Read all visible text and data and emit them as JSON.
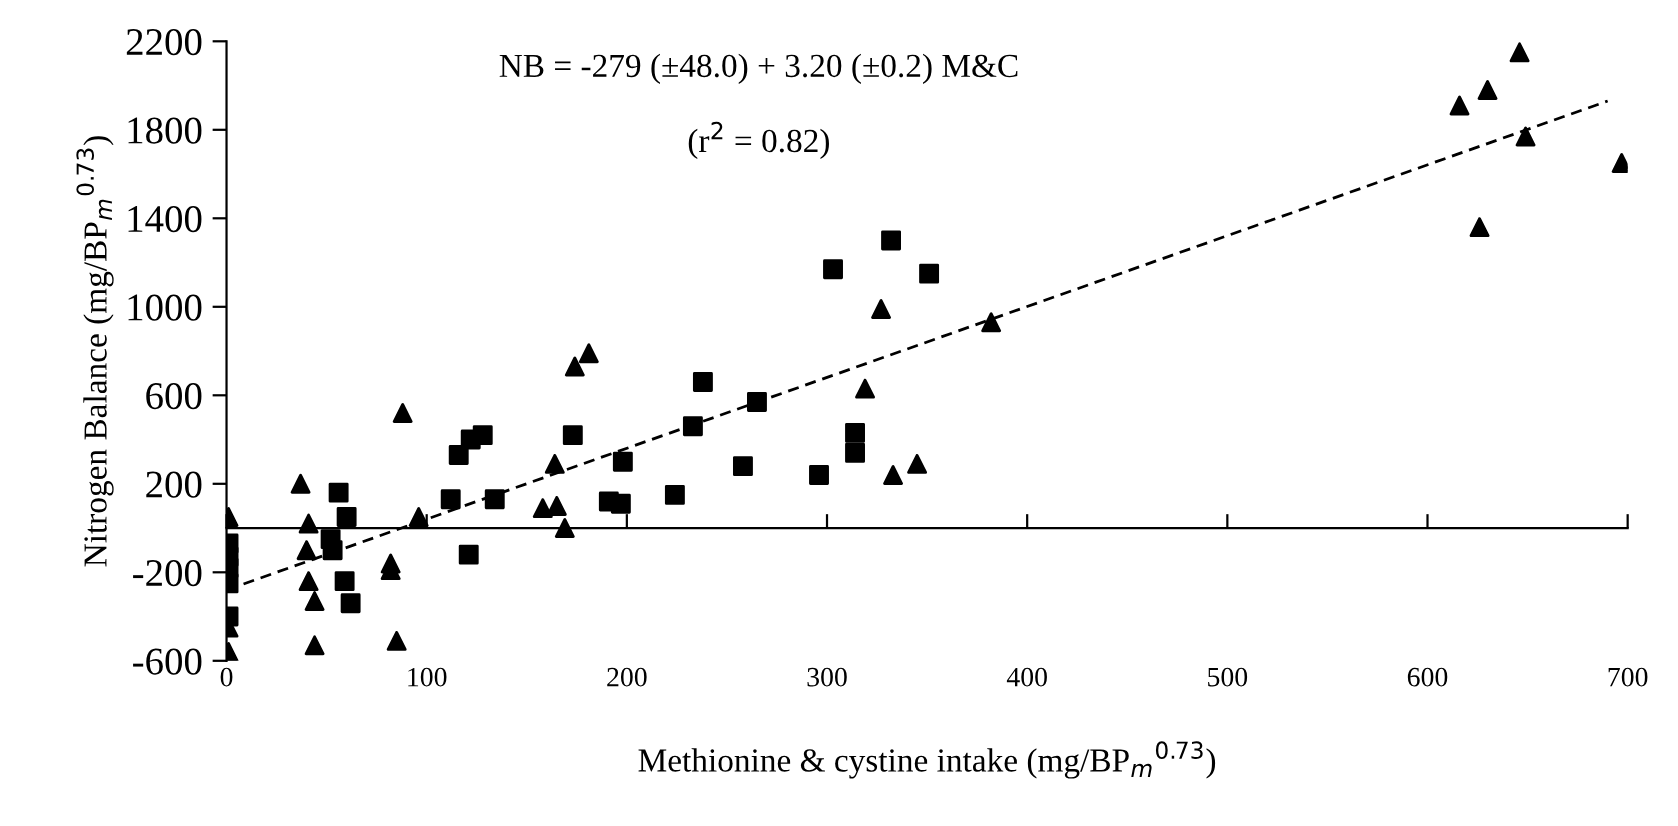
{
  "chart_data": {
    "type": "scatter",
    "xlabel": "Methionine & cystine intake (mg/BP$_{m}$$^{0.73}$)",
    "ylabel": "Nitrogen Balance (mg/BP$_{m}$$^{0.73}$)",
    "annotations": [
      "NB = -279 (±48.0) + 3.20 (±0.2) M&C",
      "(r$^{2}$ = 0.82)"
    ],
    "xlim": [
      0,
      700
    ],
    "xticks": [
      0,
      100,
      200,
      300,
      400,
      500,
      600,
      700
    ],
    "ylim": [
      -600,
      2200
    ],
    "yticks": [
      -600,
      -200,
      200,
      600,
      1000,
      1400,
      1800,
      2200
    ],
    "grid": false,
    "series": [
      {
        "type": "scatter",
        "marker": "triangle",
        "color": "#000000",
        "x": [
          1,
          1,
          1,
          37,
          41,
          40,
          41,
          44,
          44,
          82,
          82,
          85,
          88,
          96,
          158,
          165,
          164,
          169,
          174,
          181,
          319,
          327,
          333,
          345,
          382,
          616,
          626,
          630,
          646,
          649,
          697
        ],
        "values": [
          50,
          -450,
          -560,
          200,
          20,
          -100,
          -240,
          -330,
          -530,
          -190,
          -160,
          -510,
          520,
          50,
          90,
          100,
          290,
          0,
          730,
          790,
          630,
          990,
          240,
          290,
          930,
          1910,
          1360,
          1980,
          2150,
          1770,
          1650
        ]
      },
      {
        "type": "scatter",
        "marker": "square",
        "color": "#000000",
        "x": [
          1,
          1,
          1,
          1,
          1,
          52,
          53,
          56,
          59,
          60,
          62,
          112,
          116,
          121,
          122,
          128,
          134,
          173,
          191,
          197,
          198,
          224,
          233,
          238,
          258,
          265,
          296,
          303,
          314,
          314,
          332,
          351
        ],
        "values": [
          -70,
          -130,
          -180,
          -250,
          -400,
          -50,
          -100,
          160,
          -240,
          50,
          -340,
          130,
          330,
          -120,
          400,
          420,
          130,
          420,
          120,
          110,
          300,
          150,
          460,
          660,
          280,
          570,
          240,
          1170,
          430,
          340,
          1300,
          1150
        ]
      },
      {
        "type": "line",
        "marker": "none",
        "line_style": "dashed",
        "color": "#000000",
        "x": [
          0,
          690
        ],
        "values": [
          -280,
          1930
        ]
      }
    ]
  }
}
